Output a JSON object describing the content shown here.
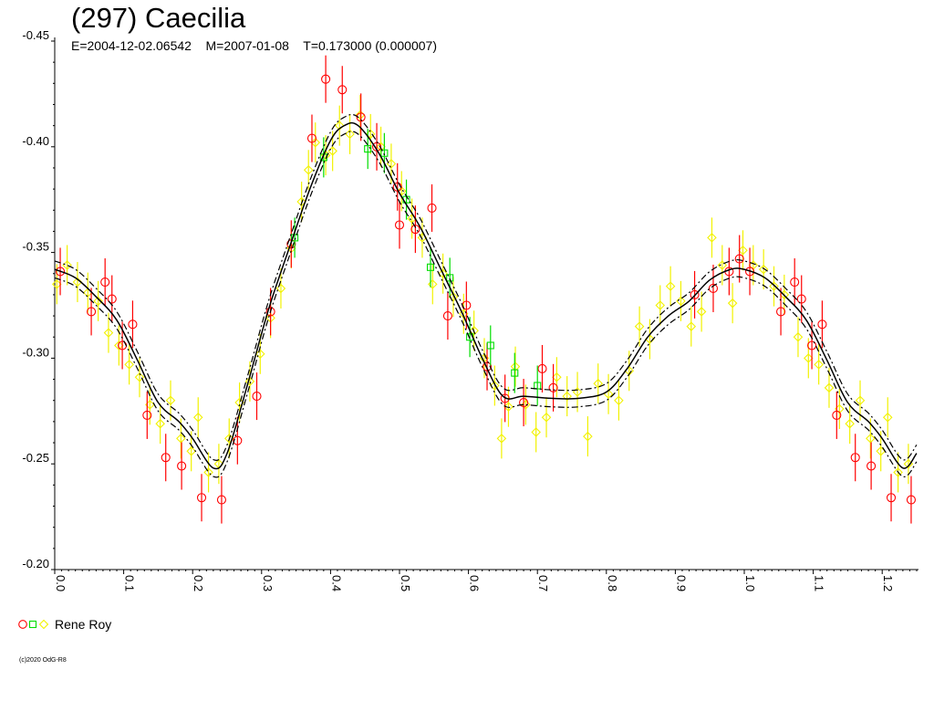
{
  "header": {
    "title": "(297) Caecilia",
    "subtitle": "E=2004-12-02.06542    M=2007-01-08    T=0.173000 (0.000007)"
  },
  "legend": {
    "label": "Rene Roy"
  },
  "footer": {
    "copyright": "(c)2020 OdG-R8"
  },
  "chart_data": {
    "type": "scatter",
    "title": "(297) Caecilia",
    "subtitle": "E=2004-12-02.06542    M=2007-01-08    T=0.173000 (0.000007)",
    "xlabel": "",
    "ylabel": "",
    "xlim": [
      0.0,
      1.25
    ],
    "ylim": [
      -0.45,
      -0.2
    ],
    "y_inverted": true,
    "x_ticks": [
      "0.0",
      "0.1",
      "0.2",
      "0.3",
      "0.4",
      "0.5",
      "0.6",
      "0.7",
      "0.8",
      "0.9",
      "1.0",
      "1.1",
      "1.2"
    ],
    "y_ticks": [
      "-0.45",
      "-0.40",
      "-0.35",
      "-0.30",
      "-0.25",
      "-0.20"
    ],
    "grid": false,
    "legend_position": "bottom-left",
    "colors": {
      "red": "#ff0000",
      "green": "#00dd00",
      "yellow": "#f2f200",
      "curve": "#000000"
    },
    "series": [
      {
        "name": "Rene Roy",
        "sessions": [
          {
            "color": "red",
            "marker": "circle",
            "points": [
              [
                0.008,
                -0.341
              ],
              [
                0.053,
                -0.322
              ],
              [
                0.073,
                -0.336
              ],
              [
                0.083,
                -0.328
              ],
              [
                0.098,
                -0.306
              ],
              [
                0.113,
                -0.316
              ],
              [
                0.134,
                -0.273
              ],
              [
                0.161,
                -0.253
              ],
              [
                0.184,
                -0.249
              ],
              [
                0.213,
                -0.234
              ],
              [
                0.242,
                -0.233
              ],
              [
                0.265,
                -0.261
              ],
              [
                0.293,
                -0.282
              ],
              [
                0.313,
                -0.322
              ],
              [
                0.343,
                -0.354
              ],
              [
                0.373,
                -0.404
              ],
              [
                0.393,
                -0.432
              ],
              [
                0.417,
                -0.427
              ],
              [
                0.444,
                -0.414
              ],
              [
                0.467,
                -0.4
              ],
              [
                0.497,
                -0.381
              ],
              [
                0.5,
                -0.363
              ],
              [
                0.523,
                -0.361
              ],
              [
                0.547,
                -0.371
              ],
              [
                0.57,
                -0.32
              ],
              [
                0.597,
                -0.325
              ],
              [
                0.627,
                -0.296
              ],
              [
                0.653,
                -0.281
              ],
              [
                0.68,
                -0.279
              ],
              [
                0.707,
                -0.295
              ],
              [
                0.723,
                -0.286
              ],
              [
                0.928,
                -0.33
              ],
              [
                0.955,
                -0.333
              ],
              [
                0.978,
                -0.341
              ],
              [
                0.993,
                -0.347
              ],
              [
                1.008,
                -0.341
              ],
              [
                1.053,
                -0.322
              ],
              [
                1.073,
                -0.336
              ],
              [
                1.083,
                -0.328
              ],
              [
                1.098,
                -0.306
              ],
              [
                1.113,
                -0.316
              ],
              [
                1.134,
                -0.273
              ],
              [
                1.161,
                -0.253
              ],
              [
                1.184,
                -0.249
              ],
              [
                1.213,
                -0.234
              ],
              [
                1.242,
                -0.233
              ]
            ]
          },
          {
            "color": "green",
            "marker": "square",
            "points": [
              [
                0.348,
                -0.357
              ],
              [
                0.39,
                -0.395
              ],
              [
                0.454,
                -0.399
              ],
              [
                0.478,
                -0.397
              ],
              [
                0.51,
                -0.375
              ],
              [
                0.545,
                -0.343
              ],
              [
                0.573,
                -0.338
              ],
              [
                0.602,
                -0.31
              ],
              [
                0.632,
                -0.306
              ],
              [
                0.667,
                -0.293
              ],
              [
                0.7,
                -0.287
              ]
            ]
          },
          {
            "color": "yellow",
            "marker": "diamond",
            "points": [
              [
                0.003,
                -0.335
              ],
              [
                0.018,
                -0.344
              ],
              [
                0.033,
                -0.336
              ],
              [
                0.048,
                -0.331
              ],
              [
                0.063,
                -0.327
              ],
              [
                0.078,
                -0.312
              ],
              [
                0.093,
                -0.306
              ],
              [
                0.108,
                -0.297
              ],
              [
                0.123,
                -0.291
              ],
              [
                0.138,
                -0.278
              ],
              [
                0.153,
                -0.269
              ],
              [
                0.168,
                -0.28
              ],
              [
                0.183,
                -0.262
              ],
              [
                0.198,
                -0.256
              ],
              [
                0.208,
                -0.272
              ],
              [
                0.223,
                -0.246
              ],
              [
                0.238,
                -0.25
              ],
              [
                0.253,
                -0.262
              ],
              [
                0.268,
                -0.279
              ],
              [
                0.283,
                -0.289
              ],
              [
                0.298,
                -0.302
              ],
              [
                0.313,
                -0.319
              ],
              [
                0.328,
                -0.333
              ],
              [
                0.343,
                -0.352
              ],
              [
                0.358,
                -0.374
              ],
              [
                0.368,
                -0.389
              ],
              [
                0.378,
                -0.402
              ],
              [
                0.393,
                -0.396
              ],
              [
                0.403,
                -0.398
              ],
              [
                0.413,
                -0.41
              ],
              [
                0.428,
                -0.406
              ],
              [
                0.443,
                -0.415
              ],
              [
                0.458,
                -0.406
              ],
              [
                0.473,
                -0.4
              ],
              [
                0.488,
                -0.392
              ],
              [
                0.503,
                -0.379
              ],
              [
                0.518,
                -0.366
              ],
              [
                0.533,
                -0.357
              ],
              [
                0.548,
                -0.335
              ],
              [
                0.563,
                -0.34
              ],
              [
                0.578,
                -0.329
              ],
              [
                0.593,
                -0.321
              ],
              [
                0.608,
                -0.313
              ],
              [
                0.623,
                -0.3
              ],
              [
                0.638,
                -0.287
              ],
              [
                0.648,
                -0.262
              ],
              [
                0.658,
                -0.277
              ],
              [
                0.668,
                -0.296
              ],
              [
                0.683,
                -0.278
              ],
              [
                0.698,
                -0.265
              ],
              [
                0.713,
                -0.272
              ],
              [
                0.728,
                -0.291
              ],
              [
                0.743,
                -0.282
              ],
              [
                0.758,
                -0.284
              ],
              [
                0.773,
                -0.263
              ],
              [
                0.788,
                -0.288
              ],
              [
                0.803,
                -0.283
              ],
              [
                0.818,
                -0.28
              ],
              [
                0.833,
                -0.294
              ],
              [
                0.848,
                -0.315
              ],
              [
                0.863,
                -0.309
              ],
              [
                0.878,
                -0.325
              ],
              [
                0.893,
                -0.334
              ],
              [
                0.908,
                -0.327
              ],
              [
                0.923,
                -0.315
              ],
              [
                0.938,
                -0.322
              ],
              [
                0.953,
                -0.357
              ],
              [
                0.968,
                -0.344
              ],
              [
                0.983,
                -0.326
              ],
              [
                0.998,
                -0.351
              ],
              [
                1.013,
                -0.344
              ],
              [
                1.028,
                -0.342
              ],
              [
                1.043,
                -0.334
              ],
              [
                1.058,
                -0.33
              ],
              [
                1.078,
                -0.31
              ],
              [
                1.093,
                -0.3
              ],
              [
                1.108,
                -0.297
              ],
              [
                1.123,
                -0.286
              ],
              [
                1.138,
                -0.276
              ],
              [
                1.153,
                -0.269
              ],
              [
                1.168,
                -0.28
              ],
              [
                1.183,
                -0.262
              ],
              [
                1.198,
                -0.256
              ],
              [
                1.208,
                -0.272
              ],
              [
                1.223,
                -0.246
              ],
              [
                1.238,
                -0.25
              ]
            ]
          }
        ]
      }
    ],
    "fit_curve": {
      "style": "solid with dash-dot upper and lower bounds",
      "knots": [
        [
          0.0,
          -0.342
        ],
        [
          0.03,
          -0.338
        ],
        [
          0.06,
          -0.329
        ],
        [
          0.09,
          -0.318
        ],
        [
          0.12,
          -0.299
        ],
        [
          0.15,
          -0.279
        ],
        [
          0.18,
          -0.27
        ],
        [
          0.2,
          -0.262
        ],
        [
          0.23,
          -0.248
        ],
        [
          0.25,
          -0.255
        ],
        [
          0.28,
          -0.288
        ],
        [
          0.31,
          -0.323
        ],
        [
          0.34,
          -0.352
        ],
        [
          0.37,
          -0.38
        ],
        [
          0.4,
          -0.403
        ],
        [
          0.42,
          -0.41
        ],
        [
          0.44,
          -0.41
        ],
        [
          0.47,
          -0.397
        ],
        [
          0.5,
          -0.378
        ],
        [
          0.53,
          -0.362
        ],
        [
          0.56,
          -0.342
        ],
        [
          0.59,
          -0.322
        ],
        [
          0.62,
          -0.3
        ],
        [
          0.65,
          -0.282
        ],
        [
          0.68,
          -0.282
        ],
        [
          0.72,
          -0.281
        ],
        [
          0.76,
          -0.281
        ],
        [
          0.8,
          -0.284
        ],
        [
          0.83,
          -0.295
        ],
        [
          0.86,
          -0.31
        ],
        [
          0.89,
          -0.32
        ],
        [
          0.92,
          -0.327
        ],
        [
          0.95,
          -0.337
        ],
        [
          0.98,
          -0.342
        ],
        [
          1.0,
          -0.342
        ],
        [
          1.03,
          -0.338
        ],
        [
          1.06,
          -0.329
        ],
        [
          1.09,
          -0.318
        ],
        [
          1.12,
          -0.299
        ],
        [
          1.15,
          -0.279
        ],
        [
          1.18,
          -0.27
        ],
        [
          1.2,
          -0.262
        ],
        [
          1.23,
          -0.248
        ],
        [
          1.25,
          -0.255
        ]
      ],
      "band_offset": 0.004
    }
  }
}
